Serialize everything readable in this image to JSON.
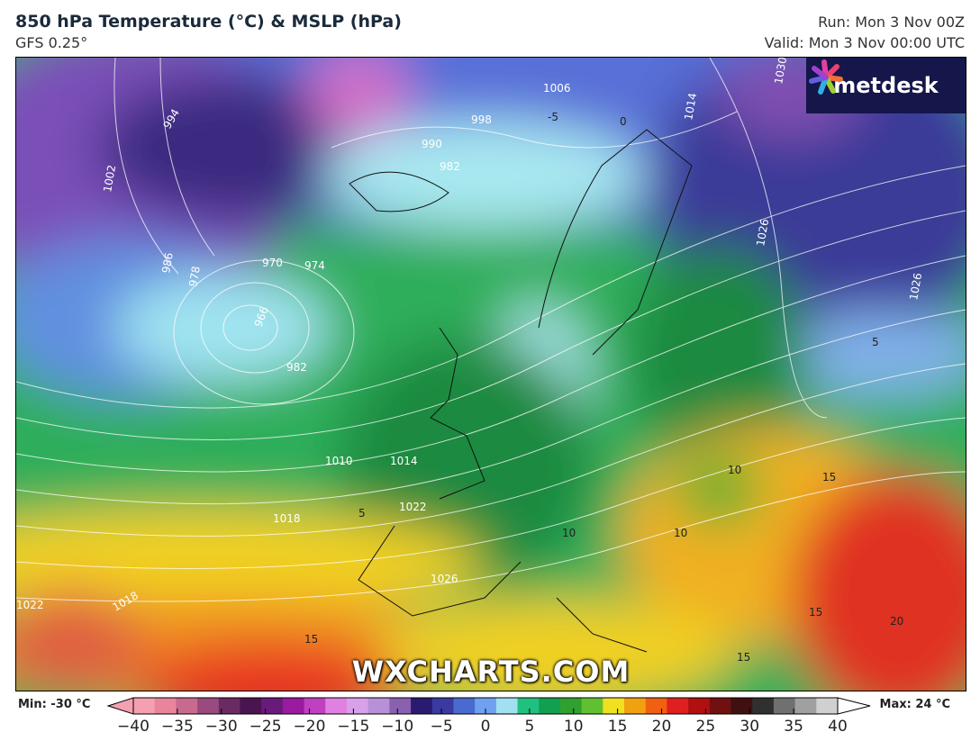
{
  "header": {
    "title": "850 hPa Temperature (°C) & MSLP (hPa)",
    "model": "GFS 0.25°",
    "run": "Run: Mon 3 Nov 00Z",
    "valid": "Valid: Mon 3 Nov 00:00 UTC"
  },
  "logo": {
    "text": "metdesk"
  },
  "watermark": "WXCHARTS.COM",
  "legend": {
    "min_label": "Min: -30 °C",
    "max_label": "Max: 24 °C",
    "ticks": [
      "−40",
      "−35",
      "−30",
      "−25",
      "−20",
      "−15",
      "−10",
      "−5",
      "0",
      "5",
      "10",
      "15",
      "20",
      "25",
      "30",
      "35",
      "40"
    ],
    "colors": [
      "#f4a0b0",
      "#e8849c",
      "#c86a8e",
      "#9a4a7e",
      "#6a2a62",
      "#4a1450",
      "#6a1a7a",
      "#9a1aa0",
      "#c040c0",
      "#e080e0",
      "#d8a0e8",
      "#b890d8",
      "#8a60b0",
      "#2a1a70",
      "#3a3aa0",
      "#4a6ad0",
      "#70a0f0",
      "#a0e0f0",
      "#20c080",
      "#10a050",
      "#30a030",
      "#60c030",
      "#f0e020",
      "#f0a010",
      "#f06010",
      "#e02020",
      "#b01010",
      "#701010",
      "#401010",
      "#303030",
      "#707070",
      "#a0a0a0",
      "#d0d0d0"
    ]
  },
  "map": {
    "isobar_labels": [
      "970",
      "974",
      "966",
      "982",
      "1010",
      "1014",
      "1022",
      "1018",
      "1026",
      "1002",
      "994",
      "986",
      "978",
      "990",
      "982",
      "998",
      "1006",
      "1014",
      "1026",
      "1030",
      "1022",
      "1018",
      "1026"
    ],
    "temp_labels": [
      "10",
      "10",
      "10",
      "15",
      "15",
      "15",
      "20",
      "15",
      "5",
      "-5",
      "0",
      "5"
    ]
  }
}
